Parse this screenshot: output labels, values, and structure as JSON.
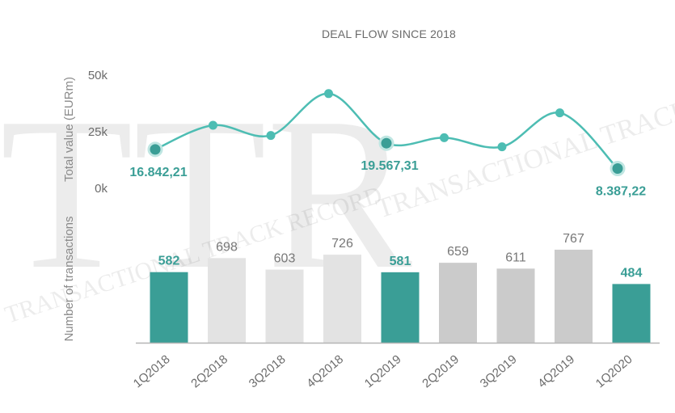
{
  "chart_data": {
    "type": "line+bar",
    "title": "DEAL FLOW SINCE 2018",
    "categories": [
      "1Q2018",
      "2Q2018",
      "3Q2018",
      "4Q2018",
      "1Q2019",
      "2Q2019",
      "3Q2019",
      "4Q2019",
      "1Q2020"
    ],
    "highlight_indices": [
      0,
      4,
      8
    ],
    "line": {
      "ylabel": "Total value (EURm)",
      "yticks": [
        "0k",
        "25k",
        "50k"
      ],
      "ylim": [
        0,
        50000
      ],
      "values": [
        16842.21,
        27500,
        23000,
        41500,
        19567.31,
        22000,
        18000,
        33000,
        8387.22
      ],
      "labels": [
        {
          "index": 0,
          "text": "16.842,21"
        },
        {
          "index": 4,
          "text": "19.567,31"
        },
        {
          "index": 8,
          "text": "8.387,22"
        }
      ]
    },
    "bars": {
      "ylabel": "Number of transactions",
      "values": [
        582,
        698,
        603,
        726,
        581,
        659,
        611,
        767,
        484
      ],
      "labels": [
        "582",
        "698",
        "603",
        "726",
        "581",
        "659",
        "611",
        "767",
        "484"
      ]
    },
    "colors": {
      "accent": "#3a9e96",
      "line": "#4dbdb3",
      "bar_early": "#e3e3e3",
      "bar_late": "#cbcbcb",
      "axis": "#b5b5b5"
    },
    "watermark": [
      "TTR",
      "TRANSACTIONAL TRACK RECORD"
    ]
  }
}
